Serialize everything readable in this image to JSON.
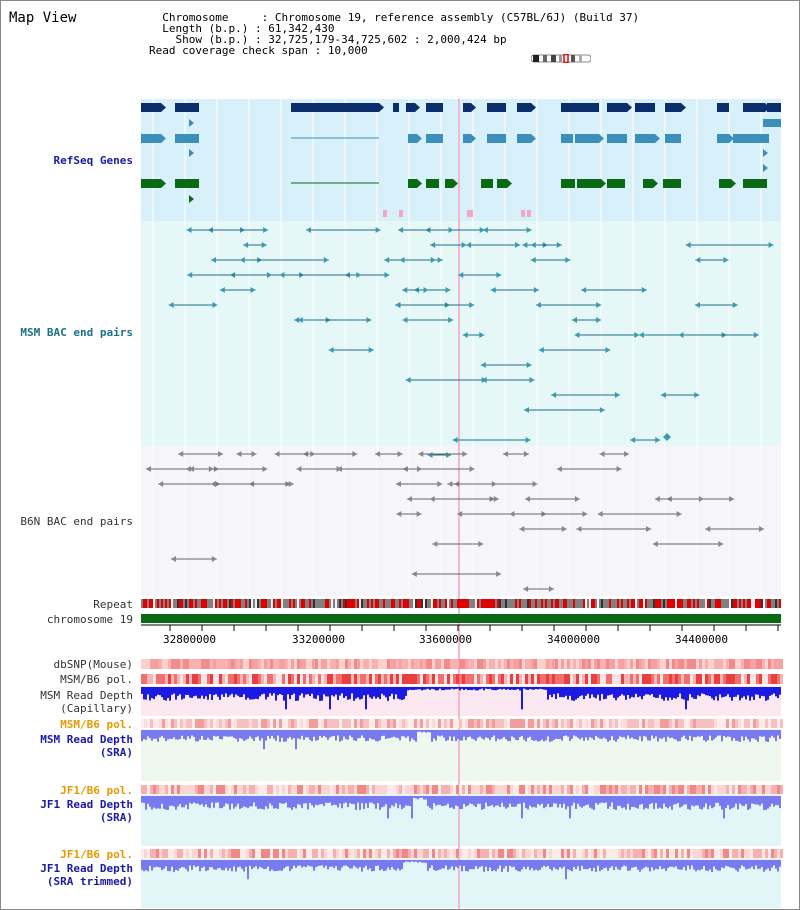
{
  "page": {
    "title": "Map View"
  },
  "info": {
    "chromosome_label": "Chromosome",
    "chromosome_value": "Chromosome 19, reference assembly (C57BL/6J) (Build 37)",
    "length_label": "Length (b.p.)",
    "length_value": "61,342,430",
    "show_label": "Show (b.p.)",
    "show_value": "32,725,179-34,725,602 : 2,000,424 bp",
    "span_label": "Read coverage check span",
    "span_value": "10,000"
  },
  "tracks": {
    "refseq": "RefSeq Genes",
    "msm_bac": "MSM BAC end pairs",
    "b6n_bac": "B6N BAC end pairs",
    "repeat": "Repeat",
    "chromosome": "chromosome 19",
    "dbsnp": "dbSNP(Mouse)",
    "msm_b6_pol": "MSM/B6 pol.",
    "msm_read_depth_cap_1": "MSM Read Depth",
    "msm_read_depth_cap_2": "(Capillary)",
    "msm_b6_pol_sra": "MSM/B6 pol.",
    "msm_read_depth_sra_1": "MSM Read Depth",
    "msm_read_depth_sra_2": "(SRA)",
    "jf1_b6_pol": "JF1/B6 pol.",
    "jf1_read_depth_1": "JF1 Read Depth",
    "jf1_read_depth_2": "(SRA)",
    "jf1_b6_pol_trim": "JF1/B6 pol.",
    "jf1_read_depth_trim_1": "JF1 Read Depth",
    "jf1_read_depth_trim_2": "(SRA trimmed)"
  },
  "axis": {
    "ticks": [
      "32800000",
      "33200000",
      "33600000",
      "34000000",
      "34400000"
    ]
  },
  "colors": {
    "refseq_bg": "#d8f0fa",
    "msm_bac_bg": "#e6f7f7",
    "b6n_bac_bg": "#f6f6fa",
    "gene_dark": "#0a2d6b",
    "gene_mid": "#3b8fb8",
    "gene_green": "#0a6a14",
    "chromosome_bar": "#0a6a14",
    "depth_blue": "#1a1ae0",
    "depth_light": "#7a7af0"
  }
}
